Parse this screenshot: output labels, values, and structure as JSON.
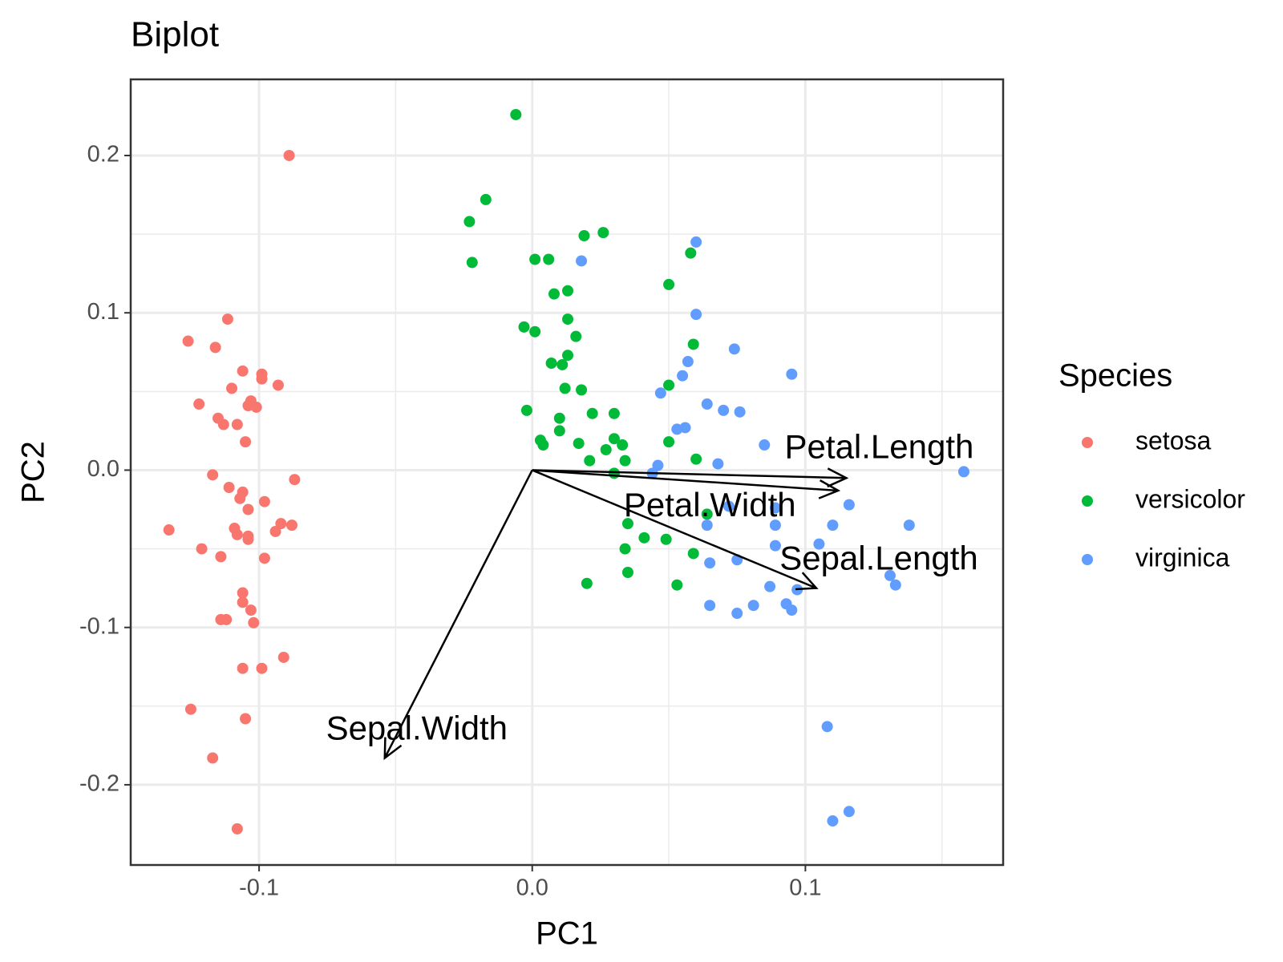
{
  "chart_data": {
    "type": "scatter",
    "title": "Biplot",
    "x_label": "PC1",
    "y_label": "PC2",
    "legend_title": "Species",
    "legend_position": "right",
    "grid": true,
    "xlim": [
      -0.147,
      0.1724
    ],
    "ylim": [
      -0.251,
      0.2484
    ],
    "xticks": [
      -0.1,
      {
        "value": 0,
        "label": "0.0"
      },
      0.1
    ],
    "yticks": [
      -0.2,
      -0.1,
      {
        "value": 0,
        "label": "0.0"
      },
      0.1,
      0.2
    ],
    "xminor": [
      -0.15,
      -0.05,
      0.05,
      0.15
    ],
    "yminor": [
      -0.15,
      -0.05,
      0.05,
      0.15
    ],
    "series": [
      {
        "name": "setosa",
        "color": "#F8766D",
        "x": [
          -0.089,
          -0.1115,
          -0.126,
          -0.116,
          -0.106,
          -0.099,
          -0.099,
          -0.093,
          -0.11,
          -0.122,
          -0.103,
          -0.104,
          -0.101,
          -0.115,
          -0.113,
          -0.108,
          -0.105,
          -0.117,
          -0.087,
          -0.111,
          -0.106,
          -0.107,
          -0.098,
          -0.104,
          -0.092,
          -0.088,
          -0.109,
          -0.094,
          -0.133,
          -0.108,
          -0.104,
          -0.104,
          -0.121,
          -0.098,
          -0.114,
          -0.106,
          -0.106,
          -0.103,
          -0.114,
          -0.112,
          -0.102,
          -0.091,
          -0.106,
          -0.099,
          -0.125,
          -0.105,
          -0.117,
          -0.108
        ],
        "values": [
          0.2,
          0.096,
          0.082,
          0.078,
          0.063,
          0.061,
          0.058,
          0.054,
          0.052,
          0.042,
          0.044,
          0.041,
          0.04,
          0.033,
          0.029,
          0.029,
          0.018,
          -0.003,
          -0.006,
          -0.011,
          -0.014,
          -0.018,
          -0.02,
          -0.025,
          -0.034,
          -0.035,
          -0.037,
          -0.039,
          -0.038,
          -0.041,
          -0.042,
          -0.044,
          -0.05,
          -0.056,
          -0.055,
          -0.078,
          -0.084,
          -0.089,
          -0.095,
          -0.095,
          -0.097,
          -0.119,
          -0.126,
          -0.126,
          -0.152,
          -0.158,
          -0.183,
          -0.228
        ]
      },
      {
        "name": "versicolor",
        "color": "#00BA38",
        "x": [
          -0.006,
          -0.017,
          -0.023,
          -0.022,
          0.026,
          0.019,
          0.001,
          0.006,
          0.058,
          0.05,
          0.013,
          0.008,
          0.013,
          -0.003,
          0.001,
          0.016,
          0.059,
          0.013,
          0.007,
          0.011,
          0.05,
          0.012,
          0.018,
          -0.002,
          0.022,
          0.03,
          0.01,
          0.01,
          0.003,
          0.017,
          0.03,
          0.05,
          0.004,
          0.033,
          0.027,
          0.021,
          0.034,
          0.06,
          0.03,
          0.035,
          0.041,
          0.049,
          0.064,
          0.034,
          0.059,
          0.035,
          0.02,
          0.053
        ],
        "values": [
          0.226,
          0.172,
          0.158,
          0.132,
          0.151,
          0.149,
          0.134,
          0.134,
          0.138,
          0.118,
          0.114,
          0.112,
          0.096,
          0.091,
          0.088,
          0.085,
          0.08,
          0.073,
          0.068,
          0.067,
          0.054,
          0.052,
          0.051,
          0.038,
          0.036,
          0.036,
          0.033,
          0.025,
          0.019,
          0.017,
          0.02,
          0.018,
          0.016,
          0.016,
          0.013,
          0.006,
          0.006,
          0.007,
          -0.002,
          -0.034,
          -0.043,
          -0.044,
          -0.028,
          -0.05,
          -0.053,
          -0.065,
          -0.072,
          -0.073
        ]
      },
      {
        "name": "virginica",
        "color": "#619CFF",
        "x": [
          0.06,
          0.018,
          0.06,
          0.074,
          0.057,
          0.095,
          0.055,
          0.047,
          0.064,
          0.07,
          0.076,
          0.056,
          0.053,
          0.085,
          0.068,
          0.046,
          0.044,
          0.158,
          0.116,
          0.089,
          0.072,
          0.11,
          0.064,
          0.089,
          0.138,
          0.105,
          0.089,
          0.065,
          0.075,
          0.131,
          0.133,
          0.087,
          0.097,
          0.065,
          0.081,
          0.075,
          0.093,
          0.095,
          0.108,
          0.116,
          0.11
        ],
        "values": [
          0.145,
          0.133,
          0.099,
          0.077,
          0.069,
          0.061,
          0.06,
          0.049,
          0.042,
          0.038,
          0.037,
          0.027,
          0.026,
          0.016,
          0.004,
          0.003,
          -0.002,
          -0.001,
          -0.022,
          -0.024,
          -0.023,
          -0.035,
          -0.035,
          -0.035,
          -0.035,
          -0.047,
          -0.048,
          -0.059,
          -0.057,
          -0.067,
          -0.073,
          -0.074,
          -0.076,
          -0.086,
          -0.086,
          -0.091,
          -0.085,
          -0.089,
          -0.163,
          -0.217,
          -0.223
        ]
      }
    ],
    "loadings": [
      {
        "name": "Petal.Length",
        "x": 0.115,
        "y": -0.005
      },
      {
        "name": "Petal.Width",
        "x": 0.112,
        "y": -0.013
      },
      {
        "name": "Sepal.Length",
        "x": 0.104,
        "y": -0.075
      },
      {
        "name": "Sepal.Width",
        "x": -0.054,
        "y": -0.183
      }
    ]
  }
}
